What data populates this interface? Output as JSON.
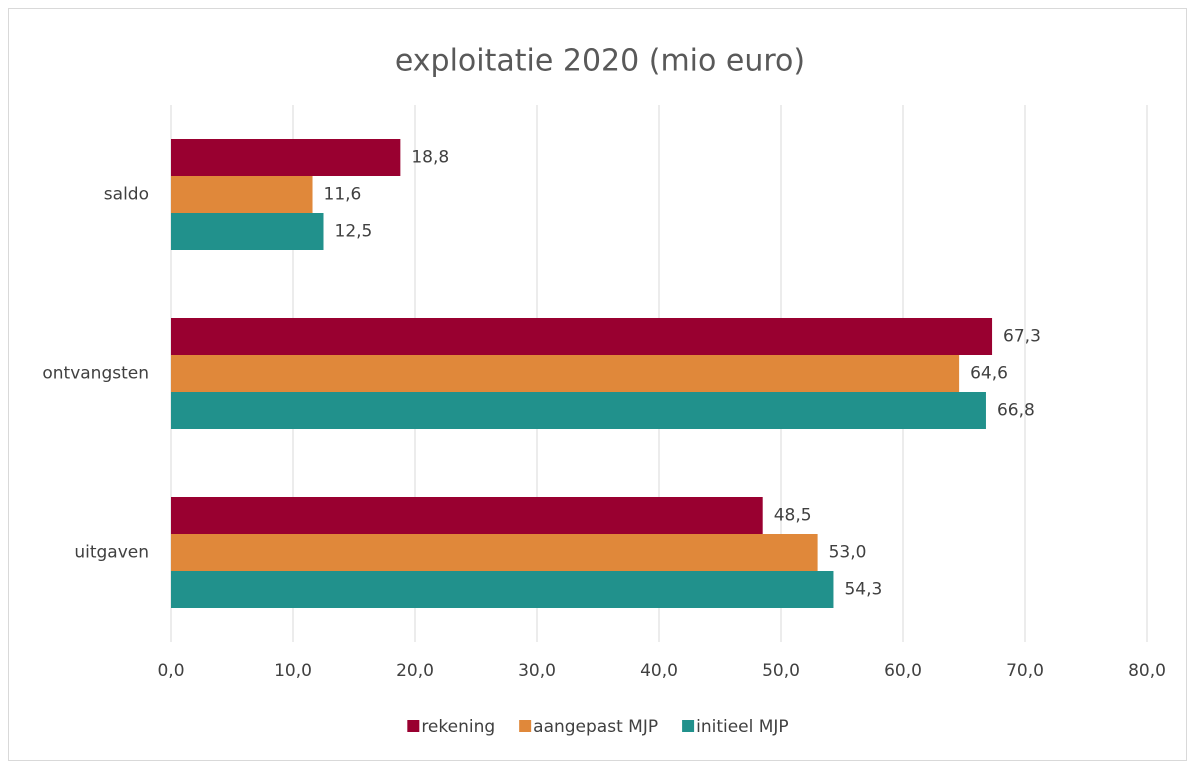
{
  "chart_data": {
    "type": "hbar",
    "title": "exploitatie 2020 (mio euro)",
    "categories": [
      "saldo",
      "ontvangsten",
      "uitgaven"
    ],
    "series": [
      {
        "name": "rekening",
        "color": "#990030",
        "values": [
          18.8,
          67.3,
          48.5
        ],
        "value_labels": [
          "18,8",
          "67,3",
          "48,5"
        ]
      },
      {
        "name": "aangepast MJP",
        "color": "#e0883a",
        "values": [
          11.6,
          64.6,
          53.0
        ],
        "value_labels": [
          "11,6",
          "64,6",
          "53,0"
        ]
      },
      {
        "name": "initieel MJP",
        "color": "#21918c",
        "values": [
          12.5,
          66.8,
          54.3
        ],
        "value_labels": [
          "12,5",
          "66,8",
          "54,3"
        ]
      }
    ],
    "xlim": [
      0,
      80
    ],
    "xticks": [
      {
        "value": 0,
        "label": "0,0"
      },
      {
        "value": 10,
        "label": "10,0"
      },
      {
        "value": 20,
        "label": "20,0"
      },
      {
        "value": 30,
        "label": "30,0"
      },
      {
        "value": 40,
        "label": "40,0"
      },
      {
        "value": 50,
        "label": "50,0"
      },
      {
        "value": 60,
        "label": "60,0"
      },
      {
        "value": 70,
        "label": "70,0"
      },
      {
        "value": 80,
        "label": "80,0"
      }
    ],
    "grid": true,
    "legend": "bottom"
  }
}
